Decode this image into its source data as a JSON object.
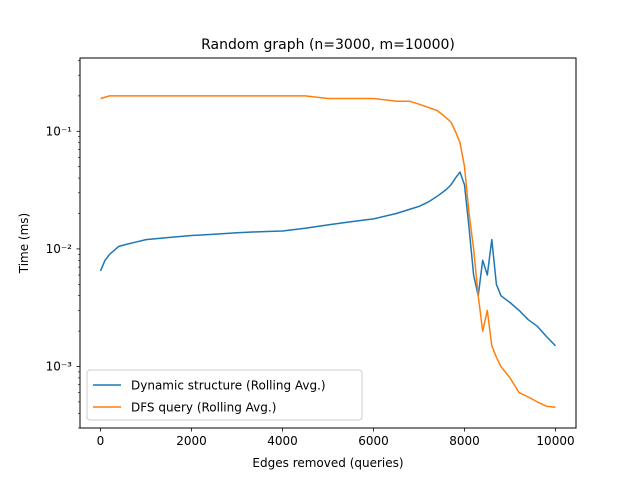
{
  "chart_data": {
    "type": "line",
    "title": "Random graph (n=3000, m=10000)",
    "xlabel": "Edges removed (queries)",
    "ylabel": "Time (ms)",
    "yscale": "log",
    "xlim": [
      -450,
      10450
    ],
    "ylim": [
      0.0003,
      0.42
    ],
    "xticks": [
      0,
      2000,
      4000,
      6000,
      8000,
      10000
    ],
    "xtick_labels": [
      "0",
      "2000",
      "4000",
      "6000",
      "8000",
      "10000"
    ],
    "yticks": [
      0.001,
      0.01,
      0.1
    ],
    "ytick_labels": [
      "10⁻³",
      "10⁻²",
      "10⁻¹"
    ],
    "grid": false,
    "legend_position": "lower-left",
    "series": [
      {
        "name": "Dynamic structure (Rolling Avg.)",
        "color": "#1f77b4",
        "x": [
          0,
          100,
          200,
          400,
          600,
          800,
          1000,
          1500,
          2000,
          2500,
          3000,
          3500,
          4000,
          4500,
          5000,
          5500,
          6000,
          6500,
          7000,
          7200,
          7400,
          7600,
          7700,
          7800,
          7900,
          8000,
          8100,
          8200,
          8300,
          8400,
          8500,
          8600,
          8700,
          8800,
          9000,
          9200,
          9400,
          9600,
          9800,
          10000
        ],
        "y": [
          0.0065,
          0.008,
          0.009,
          0.0105,
          0.011,
          0.0115,
          0.012,
          0.0125,
          0.013,
          0.0133,
          0.0137,
          0.014,
          0.0142,
          0.015,
          0.016,
          0.017,
          0.018,
          0.02,
          0.023,
          0.025,
          0.028,
          0.032,
          0.035,
          0.04,
          0.045,
          0.035,
          0.015,
          0.006,
          0.004,
          0.008,
          0.006,
          0.012,
          0.005,
          0.004,
          0.0035,
          0.003,
          0.0025,
          0.0022,
          0.0018,
          0.0015
        ]
      },
      {
        "name": "DFS query (Rolling Avg.)",
        "color": "#ff7f0e",
        "x": [
          0,
          200,
          500,
          1000,
          1500,
          2000,
          2500,
          3000,
          3500,
          4000,
          4500,
          5000,
          5500,
          6000,
          6500,
          6800,
          7000,
          7200,
          7400,
          7500,
          7600,
          7700,
          7800,
          7900,
          8000,
          8100,
          8200,
          8300,
          8400,
          8500,
          8600,
          8700,
          8800,
          9000,
          9200,
          9400,
          9600,
          9800,
          10000
        ],
        "y": [
          0.19,
          0.2,
          0.2,
          0.2,
          0.2,
          0.2,
          0.2,
          0.2,
          0.2,
          0.2,
          0.2,
          0.19,
          0.19,
          0.19,
          0.18,
          0.18,
          0.17,
          0.16,
          0.15,
          0.14,
          0.13,
          0.12,
          0.1,
          0.08,
          0.05,
          0.02,
          0.01,
          0.004,
          0.002,
          0.003,
          0.0015,
          0.0012,
          0.001,
          0.0008,
          0.0006,
          0.00055,
          0.0005,
          0.00046,
          0.00045
        ]
      }
    ]
  }
}
